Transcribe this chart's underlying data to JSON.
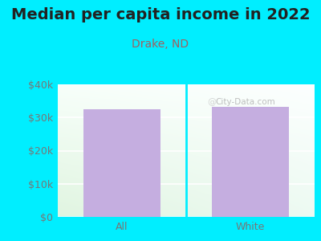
{
  "title": "Median per capita income in 2022",
  "subtitle": "Drake, ND",
  "categories": [
    "All",
    "White"
  ],
  "values": [
    32500,
    33200
  ],
  "bar_color": "#c5aee0",
  "title_fontsize": 14,
  "subtitle_fontsize": 10,
  "subtitle_color": "#a06060",
  "tick_label_color": "#777777",
  "outer_bg_color": "#00eeff",
  "ylim": [
    0,
    40000
  ],
  "yticks": [
    0,
    10000,
    20000,
    30000,
    40000
  ],
  "ytick_labels": [
    "$0",
    "$10k",
    "$20k",
    "$30k",
    "$40k"
  ],
  "watermark": "City-Data.com",
  "title_color": "#222222"
}
